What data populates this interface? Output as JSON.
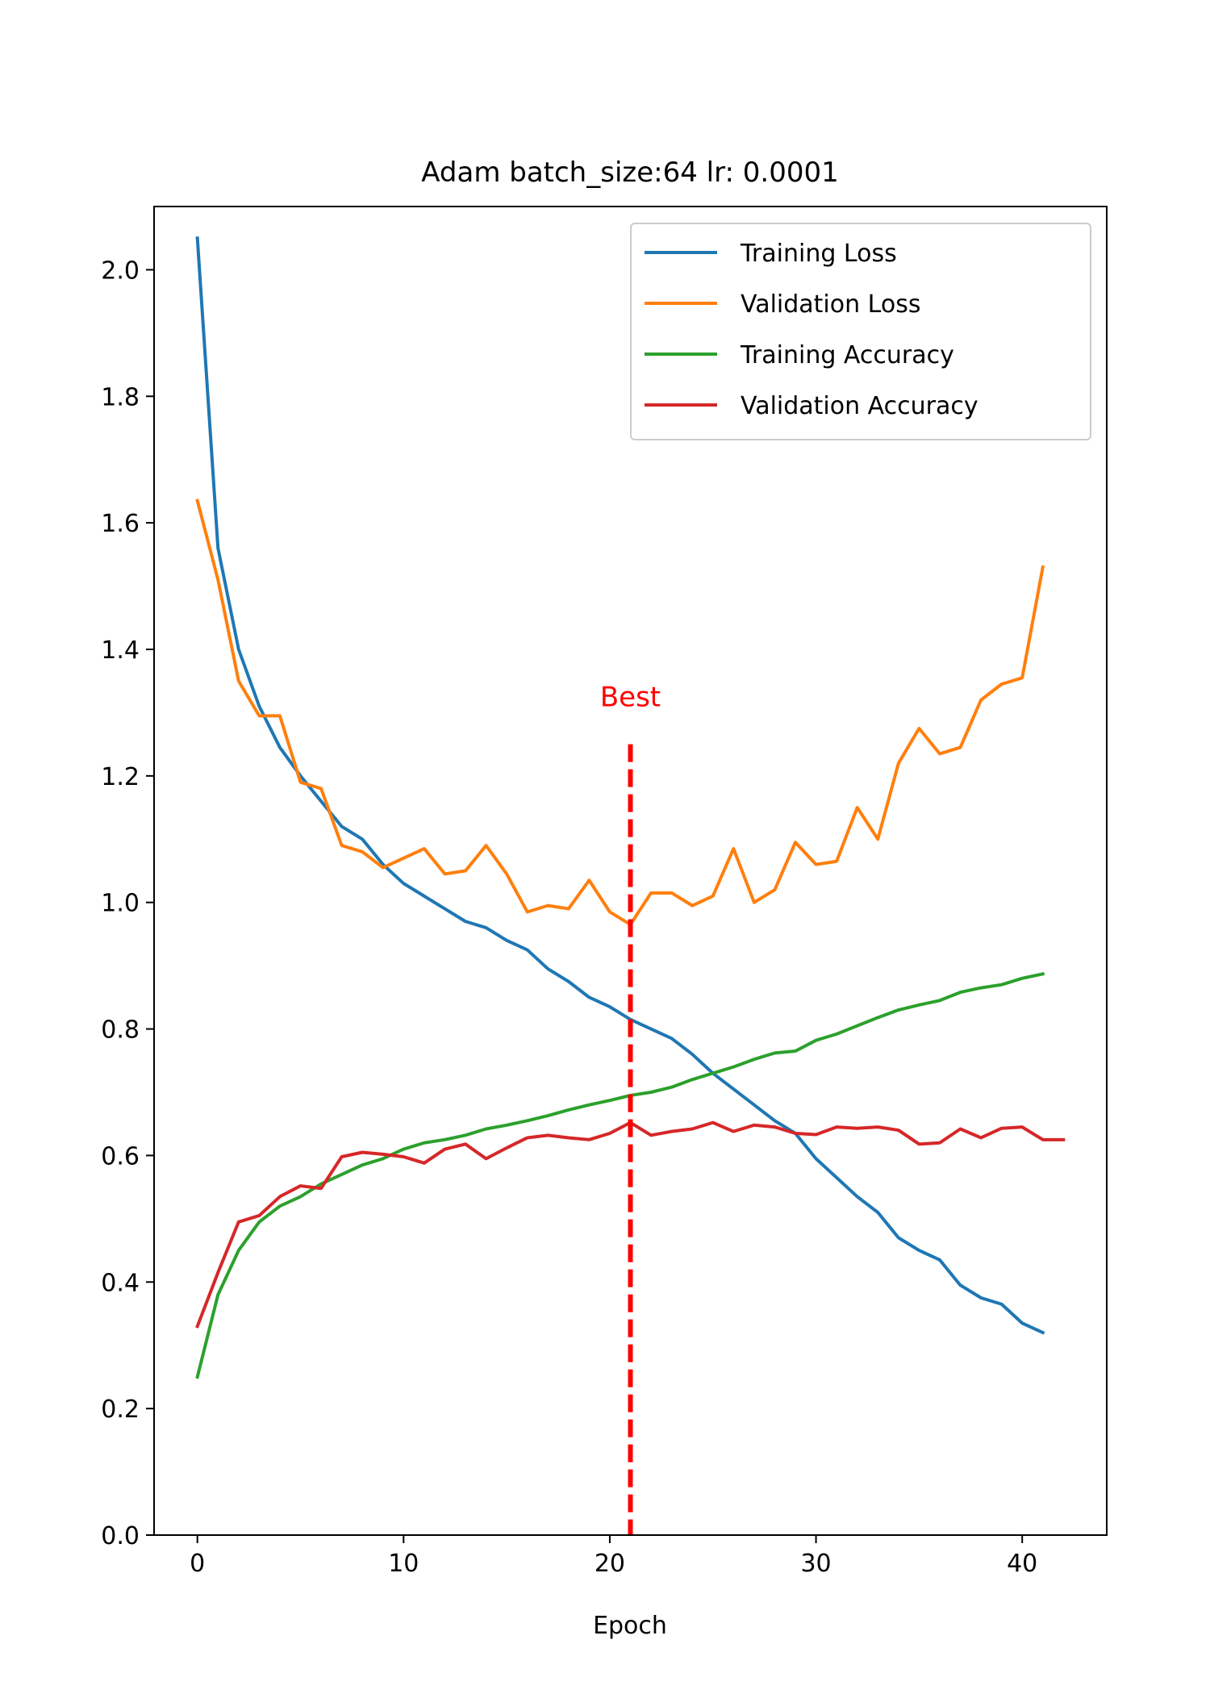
{
  "chart_data": {
    "type": "line",
    "title": "Adam batch_size:64 lr: 0.0001",
    "xlabel": "Epoch",
    "ylabel": "",
    "xlim": [
      -2.1,
      44.1
    ],
    "ylim": [
      0.0,
      2.1
    ],
    "xticks": [
      0,
      10,
      20,
      30,
      40
    ],
    "xtick_labels": [
      "0",
      "10",
      "20",
      "30",
      "40"
    ],
    "yticks": [
      0.0,
      0.2,
      0.4,
      0.6,
      0.8,
      1.0,
      1.2,
      1.4,
      1.6,
      1.8,
      2.0
    ],
    "ytick_labels": [
      "0.0",
      "0.2",
      "0.4",
      "0.6",
      "0.8",
      "1.0",
      "1.2",
      "1.4",
      "1.6",
      "1.8",
      "2.0"
    ],
    "grid": false,
    "legend_position": "top-right",
    "series": [
      {
        "name": "Training Loss",
        "color": "#1f77b4",
        "x": [
          0,
          1,
          2,
          3,
          4,
          5,
          6,
          7,
          8,
          9,
          10,
          11,
          12,
          13,
          14,
          15,
          16,
          17,
          18,
          19,
          20,
          21,
          22,
          23,
          24,
          25,
          26,
          27,
          28,
          29,
          30,
          31,
          32,
          33,
          34,
          35,
          36,
          37,
          38,
          39,
          40,
          41
        ],
        "values": [
          2.05,
          1.56,
          1.4,
          1.31,
          1.245,
          1.2,
          1.16,
          1.12,
          1.1,
          1.06,
          1.03,
          1.01,
          0.99,
          0.97,
          0.96,
          0.94,
          0.925,
          0.895,
          0.875,
          0.85,
          0.835,
          0.815,
          0.8,
          0.785,
          0.76,
          0.73,
          0.705,
          0.68,
          0.655,
          0.635,
          0.595,
          0.565,
          0.535,
          0.51,
          0.47,
          0.45,
          0.435,
          0.395,
          0.375,
          0.365,
          0.335,
          0.32
        ]
      },
      {
        "name": "Validation Loss",
        "color": "#ff7f0e",
        "x": [
          0,
          1,
          2,
          3,
          4,
          5,
          6,
          7,
          8,
          9,
          10,
          11,
          12,
          13,
          14,
          15,
          16,
          17,
          18,
          19,
          20,
          21,
          22,
          23,
          24,
          25,
          26,
          27,
          28,
          29,
          30,
          31,
          32,
          33,
          34,
          35,
          36,
          37,
          38,
          39,
          40,
          41
        ],
        "values": [
          1.635,
          1.51,
          1.35,
          1.295,
          1.295,
          1.19,
          1.18,
          1.09,
          1.08,
          1.055,
          1.07,
          1.085,
          1.045,
          1.05,
          1.09,
          1.045,
          0.985,
          0.995,
          0.99,
          1.035,
          0.985,
          0.965,
          1.015,
          1.015,
          0.995,
          1.01,
          1.085,
          1.0,
          1.02,
          1.095,
          1.06,
          1.065,
          1.15,
          1.1,
          1.22,
          1.275,
          1.235,
          1.245,
          1.32,
          1.345,
          1.355,
          1.53
        ]
      },
      {
        "name": "Training Accuracy",
        "color": "#2ca02c",
        "x": [
          0,
          1,
          2,
          3,
          4,
          5,
          6,
          7,
          8,
          9,
          10,
          11,
          12,
          13,
          14,
          15,
          16,
          17,
          18,
          19,
          20,
          21,
          22,
          23,
          24,
          25,
          26,
          27,
          28,
          29,
          30,
          31,
          32,
          33,
          34,
          35,
          36,
          37,
          38,
          39,
          40,
          41
        ],
        "values": [
          0.25,
          0.38,
          0.45,
          0.495,
          0.52,
          0.535,
          0.555,
          0.57,
          0.585,
          0.595,
          0.61,
          0.62,
          0.625,
          0.632,
          0.642,
          0.648,
          0.655,
          0.663,
          0.672,
          0.68,
          0.687,
          0.695,
          0.7,
          0.708,
          0.72,
          0.73,
          0.74,
          0.752,
          0.762,
          0.765,
          0.782,
          0.792,
          0.805,
          0.818,
          0.83,
          0.838,
          0.845,
          0.858,
          0.865,
          0.87,
          0.88,
          0.887
        ]
      },
      {
        "name": "Validation Accuracy",
        "color": "#d62728",
        "x": [
          0,
          1,
          2,
          3,
          4,
          5,
          6,
          7,
          8,
          9,
          10,
          11,
          12,
          13,
          14,
          15,
          16,
          17,
          18,
          19,
          20,
          21,
          22,
          23,
          24,
          25,
          26,
          27,
          28,
          29,
          30,
          31,
          32,
          33,
          34,
          35,
          36,
          37,
          38,
          39,
          40,
          41,
          42
        ],
        "values": [
          0.33,
          0.415,
          0.495,
          0.505,
          0.535,
          0.552,
          0.548,
          0.598,
          0.605,
          0.602,
          0.598,
          0.588,
          0.61,
          0.618,
          0.595,
          0.612,
          0.628,
          0.632,
          0.628,
          0.625,
          0.635,
          0.652,
          0.632,
          0.638,
          0.642,
          0.652,
          0.638,
          0.648,
          0.645,
          0.635,
          0.633,
          0.645,
          0.643,
          0.645,
          0.64,
          0.618,
          0.62,
          0.642,
          0.628,
          0.643,
          0.645,
          0.625,
          0.625
        ]
      }
    ],
    "annotations": [
      {
        "type": "vline",
        "x": 21,
        "y_from": 0.0,
        "y_to": 1.25,
        "color": "#ff0000",
        "style": "dashed"
      },
      {
        "type": "text",
        "text": "Best",
        "x": 21,
        "y": 1.31,
        "color": "#ff0000"
      }
    ]
  }
}
